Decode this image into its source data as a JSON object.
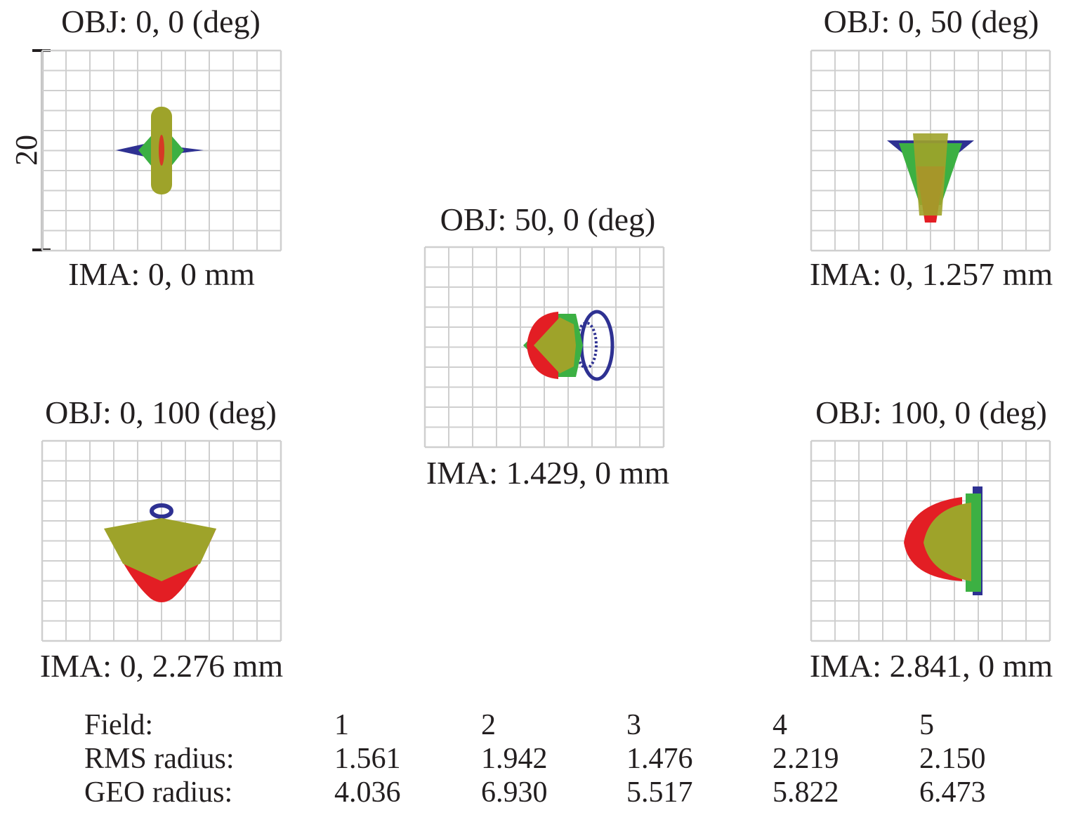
{
  "chart_data": {
    "type": "scatter",
    "subtype": "spot-diagram",
    "scale_label": "20",
    "colors": {
      "wavelength_1": "#2e3192",
      "wavelength_2": "#e31e24",
      "wavelength_3": "#3cb043",
      "wavelength_4": "#9ea32a"
    },
    "grid": true,
    "panels": [
      {
        "obj": "OBJ: 0, 0 (deg)",
        "ima": "IMA: 0, 0 mm"
      },
      {
        "obj": "OBJ: 0, 50 (deg)",
        "ima": "IMA: 0, 1.257 mm"
      },
      {
        "obj": "OBJ: 50, 0 (deg)",
        "ima": "IMA: 1.429, 0 mm"
      },
      {
        "obj": "OBJ: 0, 100 (deg)",
        "ima": "IMA: 0, 2.276 mm"
      },
      {
        "obj": "OBJ: 100, 0 (deg)",
        "ima": "IMA: 2.841, 0 mm"
      }
    ],
    "table": {
      "row_labels": [
        "Field:",
        "RMS radius:",
        "GEO radius:"
      ],
      "fields": [
        "1",
        "2",
        "3",
        "4",
        "5"
      ],
      "rms_radius": [
        "1.561",
        "1.942",
        "1.476",
        "2.219",
        "2.150"
      ],
      "geo_radius": [
        "4.036",
        "6.930",
        "5.517",
        "5.822",
        "6.473"
      ]
    }
  }
}
